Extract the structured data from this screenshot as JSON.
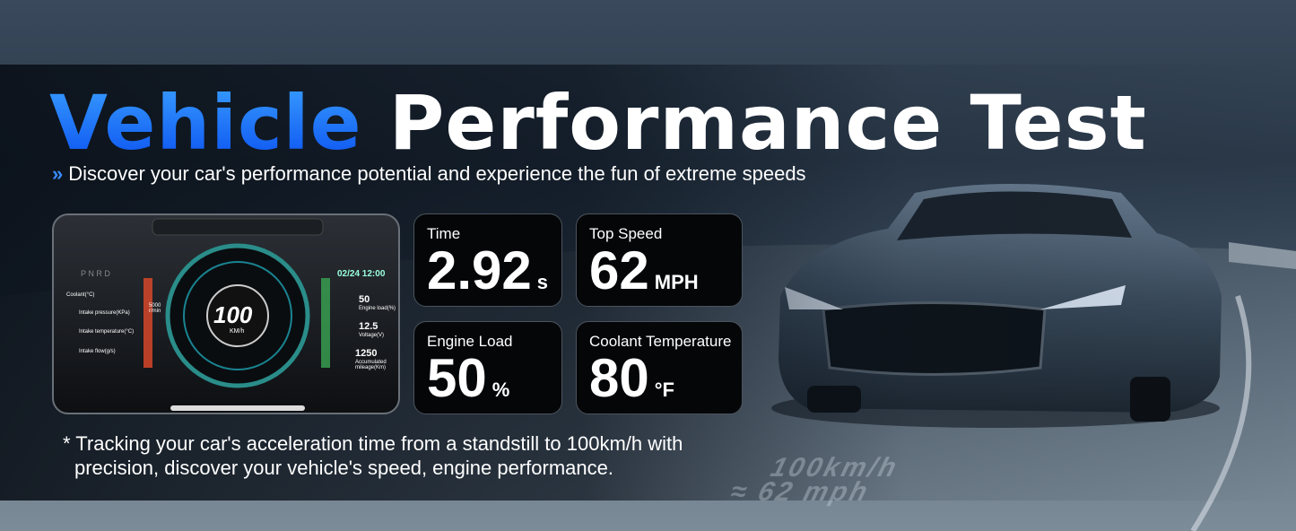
{
  "title": {
    "highlight": "Vehicle",
    "rest": "Performance Test"
  },
  "subtitle": "Discover your car's performance potential and experience the fun of extreme speeds",
  "cards": [
    {
      "label": "Time",
      "value": "2.92",
      "unit": "s"
    },
    {
      "label": "Top Speed",
      "value": "62",
      "unit": "MPH"
    },
    {
      "label": "Engine Load",
      "value": "50",
      "unit": "%"
    },
    {
      "label": "Coolant Temperature",
      "value": "80",
      "unit": "°F"
    }
  ],
  "footnote": {
    "line1": "* Tracking your car's acceleration time from a standstill to 100km/h with",
    "line2": "precision, discover your vehicle's speed, engine performance."
  },
  "road_text": {
    "line1": "100km/h",
    "line2": "≈ 62 mph"
  },
  "dashboard": {
    "gear": "P N R D",
    "datetime": "02/24 12:00",
    "speed": "100",
    "speed_unit": "KM/h",
    "rpm": "5000 r/min",
    "left_items": [
      "Coolant(°C)",
      "Intake pressure(KPa)",
      "Intake temperature(°C)",
      "Intake flow(g/s)"
    ],
    "right_items": [
      {
        "value": "50",
        "label": "Engine load(%)"
      },
      {
        "value": "12.5",
        "label": "Voltage(V)"
      },
      {
        "value": "1250",
        "label": "Accumulated mileage(Km)"
      }
    ]
  }
}
